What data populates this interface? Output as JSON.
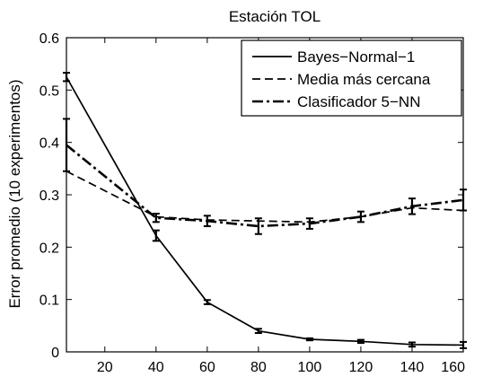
{
  "chart_data": {
    "type": "line",
    "title": "Estación TOL",
    "xlabel": "",
    "ylabel": "Error promedio (10 experimentos)",
    "xlim": [
      5,
      160
    ],
    "ylim": [
      0,
      0.6
    ],
    "xticks": [
      20,
      40,
      60,
      80,
      100,
      120,
      140,
      160
    ],
    "yticks": [
      0,
      0.1,
      0.2,
      0.3,
      0.4,
      0.5,
      0.6
    ],
    "grid": false,
    "legend_position": "top-right",
    "x": [
      5,
      40,
      60,
      80,
      100,
      120,
      140,
      160
    ],
    "series": [
      {
        "name": "Bayes−Normal−1",
        "style": "solid",
        "values": [
          0.525,
          0.222,
          0.095,
          0.04,
          0.024,
          0.02,
          0.014,
          0.013
        ],
        "errors": [
          0.008,
          0.01,
          0.004,
          0.004,
          0.002,
          0.003,
          0.004,
          0.006
        ]
      },
      {
        "name": "Media más cercana",
        "style": "dashed",
        "values": [
          0.345,
          0.258,
          0.252,
          0.25,
          0.248,
          0.258,
          0.275,
          0.27
        ],
        "errors": [
          0,
          0,
          0,
          0,
          0,
          0,
          0,
          0
        ]
      },
      {
        "name": "Clasificador 5−NN",
        "style": "dashdot",
        "values": [
          0.395,
          0.256,
          0.25,
          0.24,
          0.245,
          0.258,
          0.278,
          0.29
        ],
        "errors": [
          0.05,
          0.008,
          0.01,
          0.015,
          0.01,
          0.01,
          0.015,
          0.02
        ]
      }
    ],
    "colors": {
      "line": "#000000",
      "background": "#ffffff"
    }
  }
}
